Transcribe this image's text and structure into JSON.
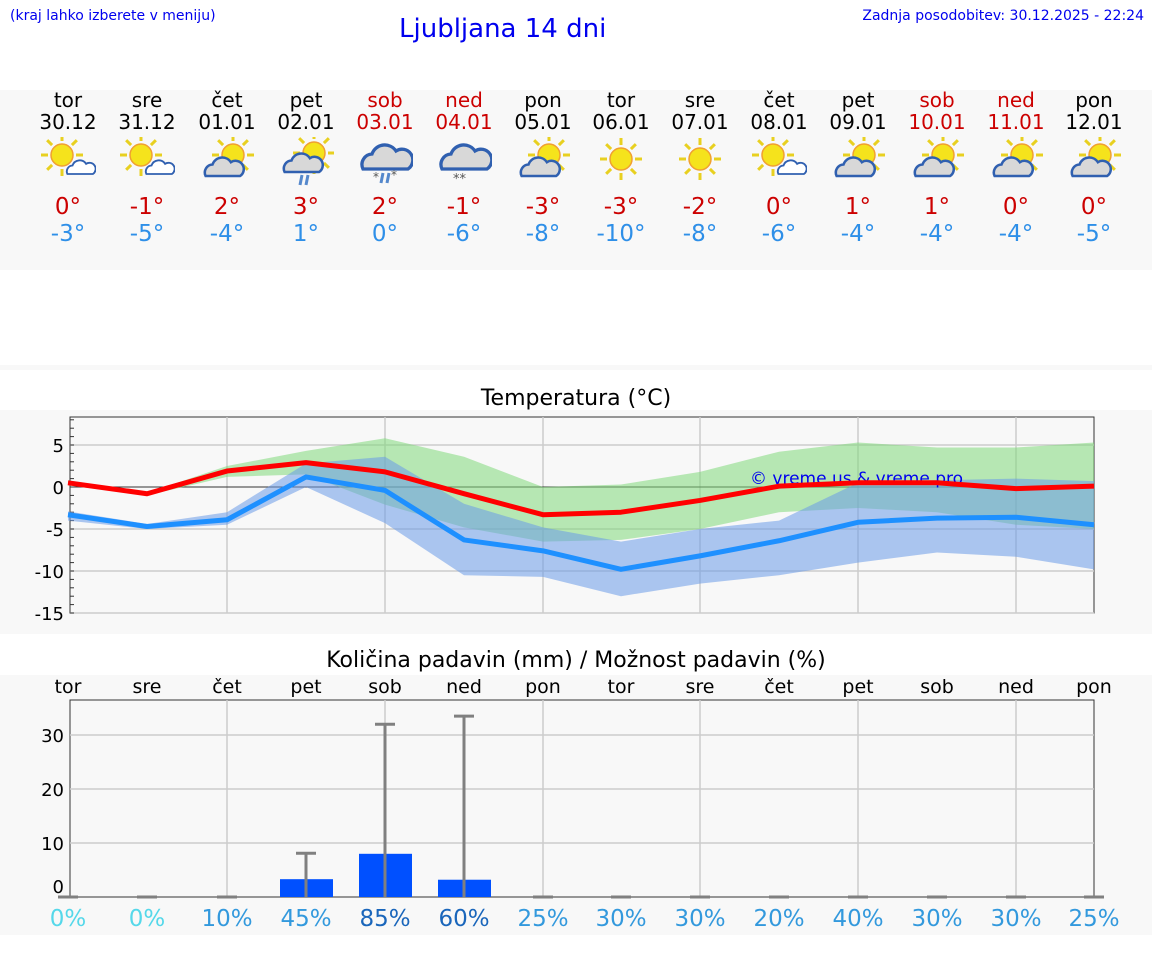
{
  "header": {
    "note": "(kraj lahko izberete v meniju)",
    "title": "Ljubljana 14 dni",
    "updated": "Zadnja posodobitev: 30.12.2025 - 22:24"
  },
  "days": [
    {
      "dow": "tor",
      "date": "30.12",
      "weekend": false,
      "icon": "sun-small-cloud-icon",
      "max": "0°",
      "min": "-3°"
    },
    {
      "dow": "sre",
      "date": "31.12",
      "weekend": false,
      "icon": "sun-small-cloud-icon",
      "max": "-1°",
      "min": "-5°"
    },
    {
      "dow": "čet",
      "date": "01.01",
      "weekend": false,
      "icon": "sun-cloud-icon",
      "max": "2°",
      "min": "-4°"
    },
    {
      "dow": "pet",
      "date": "02.01",
      "weekend": false,
      "icon": "sun-cloud-rain-icon",
      "max": "3°",
      "min": "1°"
    },
    {
      "dow": "sob",
      "date": "03.01",
      "weekend": true,
      "icon": "cloud-sleet-icon",
      "max": "2°",
      "min": "0°"
    },
    {
      "dow": "ned",
      "date": "04.01",
      "weekend": true,
      "icon": "cloud-snow-icon",
      "max": "-1°",
      "min": "-6°"
    },
    {
      "dow": "pon",
      "date": "05.01",
      "weekend": false,
      "icon": "sun-cloud-icon",
      "max": "-3°",
      "min": "-8°"
    },
    {
      "dow": "tor",
      "date": "06.01",
      "weekend": false,
      "icon": "sun-icon",
      "max": "-3°",
      "min": "-10°"
    },
    {
      "dow": "sre",
      "date": "07.01",
      "weekend": false,
      "icon": "sun-icon",
      "max": "-2°",
      "min": "-8°"
    },
    {
      "dow": "čet",
      "date": "08.01",
      "weekend": false,
      "icon": "sun-small-cloud-icon",
      "max": "0°",
      "min": "-6°"
    },
    {
      "dow": "pet",
      "date": "09.01",
      "weekend": false,
      "icon": "sun-cloud-icon",
      "max": "1°",
      "min": "-4°"
    },
    {
      "dow": "sob",
      "date": "10.01",
      "weekend": true,
      "icon": "sun-cloud-icon",
      "max": "1°",
      "min": "-4°"
    },
    {
      "dow": "ned",
      "date": "11.01",
      "weekend": true,
      "icon": "sun-cloud-icon",
      "max": "0°",
      "min": "-4°"
    },
    {
      "dow": "pon",
      "date": "12.01",
      "weekend": false,
      "icon": "sun-cloud-icon",
      "max": "0°",
      "min": "-5°"
    }
  ],
  "chart_data": [
    {
      "type": "line",
      "title": "Temperatura (°C)",
      "watermark": "© vreme.us & vreme.pro",
      "ylim": [
        -15,
        8.4
      ],
      "yticks": [
        5,
        0,
        -5,
        -10,
        -15
      ],
      "x": [
        "30.12",
        "31.12",
        "01.01",
        "02.01",
        "03.01",
        "04.01",
        "05.01",
        "06.01",
        "07.01",
        "08.01",
        "09.01",
        "10.01",
        "11.01",
        "12.01"
      ],
      "series": [
        {
          "name": "max",
          "color": "#ff0000",
          "values": [
            0.5,
            -0.8,
            1.9,
            2.9,
            1.8,
            -0.8,
            -3.3,
            -3.0,
            -1.6,
            0.1,
            0.5,
            0.5,
            -0.2,
            0.1
          ]
        },
        {
          "name": "min",
          "color": "#1e90ff",
          "values": [
            -3.3,
            -4.7,
            -3.9,
            1.2,
            -0.4,
            -6.3,
            -7.6,
            -9.8,
            -8.2,
            -6.4,
            -4.2,
            -3.7,
            -3.6,
            -4.5
          ]
        }
      ],
      "bands": [
        {
          "name": "max-range",
          "color": "#7fd87a",
          "upper": [
            0.8,
            -0.7,
            2.5,
            4.3,
            5.8,
            3.6,
            0,
            0.3,
            1.8,
            4.2,
            5.3,
            4.7,
            4.7,
            5.3
          ],
          "lower": [
            0.2,
            -1,
            1.2,
            1.5,
            -2.1,
            -4.8,
            -6.5,
            -6.3,
            -5,
            -3,
            -2.5,
            -3,
            -4.5,
            -5
          ]
        },
        {
          "name": "min-range",
          "color": "#6a9ae8",
          "upper": [
            -2.9,
            -4.4,
            -3,
            2.8,
            3.6,
            -2,
            -4.8,
            -6.5,
            -5,
            -4,
            0.5,
            0.8,
            1,
            0.7
          ],
          "lower": [
            -4,
            -5,
            -4.5,
            0,
            -4.3,
            -10.5,
            -10.7,
            -13,
            -11.5,
            -10.5,
            -9,
            -7.8,
            -8.3,
            -9.8
          ]
        }
      ]
    },
    {
      "type": "bar",
      "title": "Količina padavin (mm) / Možnost padavin (%)",
      "ylim": [
        0,
        36.5
      ],
      "yticks": [
        30,
        20,
        10,
        0
      ],
      "categories": [
        "tor",
        "sre",
        "čet",
        "pet",
        "sob",
        "ned",
        "pon",
        "tor",
        "sre",
        "čet",
        "pet",
        "sob",
        "ned",
        "pon"
      ],
      "values": [
        0,
        0,
        0,
        3.3,
        8,
        3.2,
        0,
        0,
        0,
        0,
        0,
        0,
        0,
        0
      ],
      "error_max": [
        0,
        0,
        0,
        8.1,
        32,
        33.5,
        0,
        0,
        0,
        0,
        0,
        0,
        0,
        0
      ],
      "probability": [
        "0%",
        "0%",
        "10%",
        "45%",
        "85%",
        "60%",
        "25%",
        "30%",
        "30%",
        "20%",
        "40%",
        "30%",
        "30%",
        "25%"
      ]
    }
  ]
}
